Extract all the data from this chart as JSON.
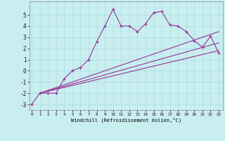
{
  "xlabel": "Windchill (Refroidissement éolien,°C)",
  "ylabel": "",
  "bg_color": "#c8eef0",
  "line_color": "#993399",
  "grid_color": "#aadddd",
  "x_ticks": [
    0,
    1,
    2,
    3,
    4,
    5,
    6,
    7,
    8,
    9,
    10,
    11,
    12,
    13,
    14,
    15,
    16,
    17,
    18,
    19,
    20,
    21,
    22,
    23
  ],
  "xlim": [
    -0.3,
    23.5
  ],
  "ylim": [
    -3.5,
    6.2
  ],
  "y_ticks": [
    -3,
    -2,
    -1,
    0,
    1,
    2,
    3,
    4,
    5
  ],
  "line1": {
    "x": [
      0,
      1,
      2,
      3,
      4,
      5,
      6,
      7,
      8,
      9,
      10,
      11,
      12,
      13,
      14,
      15,
      16,
      17,
      18,
      19,
      20,
      21,
      22,
      23
    ],
    "y": [
      -3.0,
      -2.0,
      -2.0,
      -2.0,
      -0.7,
      0.0,
      0.3,
      1.0,
      2.6,
      4.0,
      5.5,
      4.0,
      4.0,
      3.5,
      4.2,
      5.2,
      5.3,
      4.1,
      4.0,
      3.5,
      2.7,
      2.1,
      3.1,
      1.6
    ]
  },
  "line2": {
    "x": [
      1,
      23
    ],
    "y": [
      -2.0,
      3.5
    ]
  },
  "line3": {
    "x": [
      1,
      23
    ],
    "y": [
      -2.0,
      2.5
    ]
  },
  "line4": {
    "x": [
      1,
      23
    ],
    "y": [
      -2.0,
      1.8
    ]
  }
}
